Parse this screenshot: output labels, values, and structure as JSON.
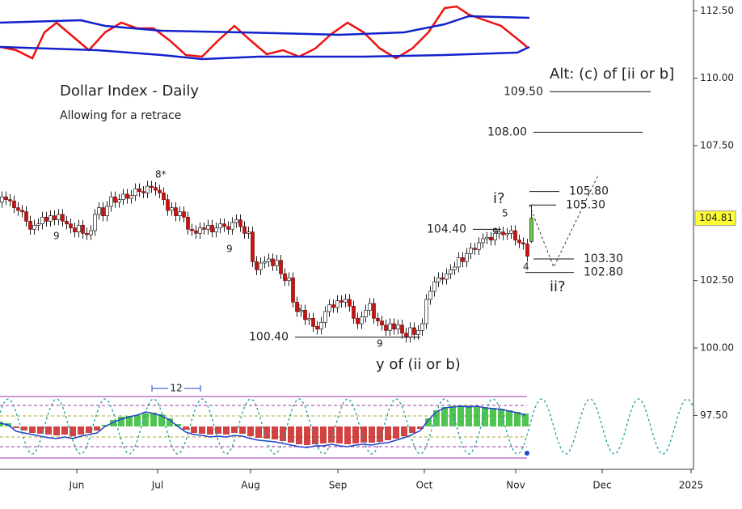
{
  "chart_data": {
    "type": "candlestick",
    "title": "Dollar Index - Daily",
    "subtitle": "Allowing for a retrace",
    "annotations": [
      "Alt: (c) of [ii or b]",
      "i?",
      "ii?",
      "y of (ii or b)"
    ],
    "open": [
      105.4,
      105.6,
      105.5,
      105.45,
      105.2,
      105.1,
      105.05,
      104.7,
      104.4,
      104.55,
      104.6,
      104.85,
      104.7,
      104.9,
      104.75,
      104.95,
      104.7,
      104.6,
      104.45,
      104.3,
      104.55,
      104.25,
      104.2,
      104.35,
      104.95,
      105.2,
      104.9,
      105.25,
      105.6,
      105.4,
      105.5,
      105.7,
      105.55,
      105.65,
      105.9,
      105.8,
      105.75,
      106.0,
      105.95,
      105.85,
      105.75,
      105.5,
      105.1,
      105.2,
      104.9,
      105.05,
      104.85,
      104.4,
      104.35,
      104.25,
      104.45,
      104.4,
      104.55,
      104.3,
      104.45,
      104.6,
      104.5,
      104.4,
      104.65,
      104.75,
      104.5,
      104.25,
      104.3,
      103.2,
      102.9,
      103.15,
      103.2,
      103.3,
      103.05,
      103.25,
      102.75,
      102.5,
      102.6,
      101.7,
      101.35,
      101.4,
      101.05,
      101.1,
      100.8,
      100.7,
      100.95,
      101.35,
      101.6,
      101.5,
      101.75,
      101.7,
      101.8,
      101.55,
      101.1,
      100.9,
      101.15,
      101.4,
      101.65,
      101.1,
      101.0,
      100.85,
      100.65,
      100.9,
      100.7,
      100.85,
      100.55,
      100.4,
      100.75,
      100.5,
      100.65,
      100.9,
      101.8,
      102.1,
      102.45,
      102.6,
      102.55,
      102.75,
      102.9,
      103.0,
      103.35,
      103.2,
      103.5,
      103.7,
      103.65,
      103.9,
      104.05,
      104.1,
      104.0,
      104.25,
      104.3,
      104.2,
      104.25,
      104.35,
      104.0,
      103.9,
      103.85,
      103.95
    ],
    "high": [
      105.8,
      105.8,
      105.7,
      105.65,
      105.4,
      105.3,
      105.25,
      104.9,
      104.75,
      104.8,
      105.05,
      105.05,
      105.1,
      105.1,
      105.15,
      105.15,
      104.9,
      104.8,
      104.65,
      104.75,
      104.75,
      104.45,
      104.55,
      105.15,
      105.4,
      105.4,
      105.45,
      105.8,
      105.8,
      105.7,
      105.9,
      105.9,
      105.85,
      106.1,
      106.1,
      106.0,
      106.2,
      106.2,
      106.15,
      106.05,
      105.95,
      105.7,
      105.4,
      105.4,
      105.25,
      105.25,
      105.05,
      104.6,
      104.55,
      104.65,
      104.65,
      104.75,
      104.75,
      104.65,
      104.8,
      104.8,
      104.7,
      104.85,
      104.95,
      104.95,
      104.7,
      104.5,
      104.5,
      103.4,
      103.35,
      103.4,
      103.5,
      103.5,
      103.45,
      103.45,
      102.95,
      102.8,
      102.8,
      101.9,
      101.6,
      101.6,
      101.3,
      101.3,
      101.0,
      101.15,
      101.55,
      101.8,
      101.8,
      101.95,
      101.95,
      102.0,
      102.0,
      101.75,
      101.3,
      101.35,
      101.6,
      101.85,
      101.85,
      101.3,
      101.2,
      101.05,
      101.1,
      101.1,
      101.05,
      101.05,
      100.75,
      100.95,
      100.95,
      100.85,
      101.1,
      102.0,
      102.3,
      102.65,
      102.8,
      102.8,
      102.95,
      103.1,
      103.2,
      103.55,
      103.55,
      103.7,
      103.9,
      103.9,
      104.1,
      104.25,
      104.3,
      104.3,
      104.45,
      104.5,
      104.5,
      104.45,
      104.55,
      104.55,
      104.2,
      104.1,
      104.05,
      105.3
    ],
    "low": [
      105.2,
      105.3,
      105.25,
      105.0,
      104.9,
      104.85,
      104.5,
      104.2,
      104.2,
      104.35,
      104.4,
      104.5,
      104.5,
      104.55,
      104.55,
      104.5,
      104.4,
      104.25,
      104.1,
      104.1,
      104.05,
      104.0,
      104.0,
      104.15,
      104.75,
      104.7,
      104.7,
      105.05,
      105.2,
      105.2,
      105.3,
      105.35,
      105.35,
      105.45,
      105.6,
      105.55,
      105.55,
      105.75,
      105.65,
      105.55,
      105.3,
      104.9,
      104.9,
      104.7,
      104.7,
      104.65,
      104.2,
      104.15,
      104.05,
      104.05,
      104.2,
      104.2,
      104.1,
      104.1,
      104.25,
      104.3,
      104.2,
      104.2,
      104.45,
      104.3,
      104.05,
      104.05,
      103.0,
      102.7,
      102.7,
      102.95,
      103.0,
      102.85,
      102.85,
      102.55,
      102.3,
      102.3,
      101.5,
      101.15,
      101.15,
      100.85,
      100.85,
      100.6,
      100.5,
      100.5,
      100.75,
      101.15,
      101.3,
      101.3,
      101.5,
      101.5,
      101.35,
      100.9,
      100.7,
      100.7,
      100.95,
      101.2,
      100.9,
      100.8,
      100.65,
      100.45,
      100.45,
      100.5,
      100.5,
      100.35,
      100.2,
      100.2,
      100.3,
      100.3,
      100.45,
      100.7,
      101.6,
      101.9,
      102.25,
      102.35,
      102.35,
      102.55,
      102.7,
      102.8,
      103.0,
      103.0,
      103.3,
      103.45,
      103.45,
      103.7,
      103.85,
      103.8,
      103.8,
      104.05,
      104.0,
      104.0,
      104.05,
      103.8,
      103.7,
      103.65,
      103.2,
      103.9
    ],
    "close": [
      105.6,
      105.5,
      105.45,
      105.2,
      105.1,
      105.05,
      104.7,
      104.4,
      104.55,
      104.6,
      104.85,
      104.7,
      104.9,
      104.75,
      104.95,
      104.7,
      104.6,
      104.45,
      104.3,
      104.55,
      104.25,
      104.2,
      104.35,
      104.95,
      105.2,
      104.9,
      105.25,
      105.6,
      105.4,
      105.5,
      105.7,
      105.55,
      105.65,
      105.9,
      105.8,
      105.75,
      106.0,
      105.95,
      105.85,
      105.75,
      105.5,
      105.1,
      105.2,
      104.9,
      105.05,
      104.85,
      104.4,
      104.35,
      104.25,
      104.45,
      104.4,
      104.55,
      104.3,
      104.45,
      104.6,
      104.5,
      104.4,
      104.65,
      104.75,
      104.5,
      104.25,
      104.3,
      103.2,
      102.9,
      103.15,
      103.2,
      103.3,
      103.05,
      103.25,
      102.75,
      102.5,
      102.6,
      101.7,
      101.35,
      101.4,
      101.05,
      101.1,
      100.8,
      100.7,
      100.95,
      101.35,
      101.6,
      101.5,
      101.75,
      101.7,
      101.8,
      101.55,
      101.1,
      100.9,
      101.15,
      101.4,
      101.65,
      101.1,
      101.0,
      100.85,
      100.65,
      100.9,
      100.7,
      100.85,
      100.55,
      100.4,
      100.75,
      100.5,
      100.65,
      100.9,
      101.8,
      102.1,
      102.45,
      102.6,
      102.55,
      102.75,
      102.9,
      103.0,
      103.35,
      103.2,
      103.5,
      103.7,
      103.65,
      103.9,
      104.05,
      104.1,
      104.0,
      104.25,
      104.3,
      104.2,
      104.25,
      104.35,
      104.0,
      103.9,
      103.85,
      103.4,
      104.81
    ],
    "up_color": "#ffffff",
    "down_color": "#cc1111",
    "last_color": "#66cc44",
    "ylim": [
      95.5,
      112.9
    ],
    "yticks": [
      {
        "value": 97.5,
        "label": "97.50"
      },
      {
        "value": 100,
        "label": "100.00"
      },
      {
        "value": 102.5,
        "label": "102.50"
      },
      {
        "value": 107.5,
        "label": "107.50"
      },
      {
        "value": 110,
        "label": "110.00"
      },
      {
        "value": 112.5,
        "label": "112.50"
      }
    ],
    "xlim": [
      0,
      172
    ],
    "xticks": [
      {
        "value": 19,
        "label": "Jun"
      },
      {
        "value": 39,
        "label": "Jul"
      },
      {
        "value": 62,
        "label": "Aug"
      },
      {
        "value": 83.6,
        "label": "Sep"
      },
      {
        "value": 105,
        "label": "Oct"
      },
      {
        "value": 127.6,
        "label": "Nov"
      },
      {
        "value": 149,
        "label": "Dec"
      },
      {
        "value": 171,
        "label": "2025"
      }
    ],
    "last_price": 104.81,
    "levels": [
      {
        "value": 109.5,
        "label": "109.50",
        "x": [
          136,
          161
        ],
        "label_side": "left"
      },
      {
        "value": 108,
        "label": "108.00",
        "x": [
          132,
          159
        ],
        "label_side": "left"
      },
      {
        "value": 105.8,
        "label": "105.80",
        "x": [
          131,
          138.4
        ],
        "label_side": "right"
      },
      {
        "value": 105.3,
        "label": "105.30",
        "x": [
          131,
          137.6
        ],
        "label_side": "right"
      },
      {
        "value": 104.4,
        "label": "104.40",
        "x": [
          117,
          124
        ],
        "label_side": "left"
      },
      {
        "value": 103.3,
        "label": "103.30",
        "x": [
          132,
          142
        ],
        "label_side": "right"
      },
      {
        "value": 102.8,
        "label": "102.80",
        "x": [
          130,
          142
        ],
        "label_side": "right"
      },
      {
        "value": 100.4,
        "label": "100.40",
        "x": [
          73,
          104
        ],
        "label_side": "left"
      }
    ],
    "projection": {
      "x": [
        131,
        137,
        148
      ],
      "y": [
        105.3,
        103.0,
        106.4
      ]
    },
    "counts": [
      {
        "text": "8*",
        "color": "#dd2222"
      },
      {
        "text": "9",
        "color": "#2233cc"
      },
      {
        "text": "9",
        "color": "#2233cc"
      },
      {
        "text": "9",
        "color": "#2233cc"
      },
      {
        "text": "5",
        "color": "#999922"
      },
      {
        "text": "5",
        "color": "#999922"
      },
      {
        "text": "9",
        "color": "#dd2222"
      },
      {
        "text": "4",
        "color": "#2233cc"
      }
    ],
    "oscillator": {
      "ylim": [
        0,
        80
      ],
      "series": [
        {
          "color": "#ee1111",
          "x": [
            0,
            4,
            8,
            11,
            14,
            18,
            22,
            26,
            30,
            34,
            38,
            42,
            46,
            50,
            54,
            58,
            62,
            66,
            70,
            74,
            78,
            82,
            86,
            90,
            94,
            98,
            102,
            106,
            110,
            113,
            116,
            120,
            124,
            128,
            130.4
          ],
          "values": [
            22,
            18,
            8,
            40,
            52,
            35,
            18,
            40,
            52,
            45,
            45,
            30,
            12,
            10,
            30,
            48,
            30,
            13,
            18,
            10,
            20,
            38,
            52,
            40,
            20,
            8,
            20,
            40,
            70,
            72,
            62,
            55,
            48,
            32,
            22
          ]
        },
        {
          "color": "#1122cc",
          "x": [
            0,
            20,
            26,
            40,
            60,
            84,
            100,
            110,
            116,
            131
          ],
          "values": [
            52,
            55,
            48,
            42,
            40,
            37,
            40,
            50,
            60,
            58
          ]
        },
        {
          "color": "#1122cc",
          "x": [
            0,
            24,
            40,
            50,
            64,
            90,
            110,
            128,
            131
          ],
          "values": [
            22,
            18,
            12,
            7,
            10,
            10,
            12,
            15,
            22
          ]
        }
      ]
    },
    "momentum": {
      "ylim": [
        -38,
        38
      ],
      "bar_up_color": "#33bb33",
      "bar_down_color": "#cc2222",
      "line_color": "#2244cc",
      "x": [
        0,
        2,
        4,
        6,
        8,
        10,
        12,
        14,
        16,
        18,
        20,
        22,
        24,
        26,
        28,
        30,
        32,
        34,
        36,
        38,
        40,
        42,
        44,
        46,
        48,
        50,
        52,
        54,
        56,
        58,
        60,
        62,
        64,
        66,
        68,
        70,
        72,
        74,
        76,
        78,
        80,
        82,
        84,
        86,
        88,
        90,
        92,
        94,
        96,
        98,
        100,
        102,
        104,
        106,
        108,
        110,
        112,
        114,
        116,
        118,
        120,
        122,
        124,
        126,
        128,
        130
      ],
      "bars": [
        6,
        4,
        -2,
        -5,
        -8,
        -9,
        -10,
        -11,
        -10,
        -12,
        -10,
        -8,
        -5,
        2,
        8,
        12,
        13,
        14,
        16,
        17,
        15,
        10,
        3,
        -4,
        -8,
        -9,
        -10,
        -9,
        -10,
        -8,
        -9,
        -12,
        -14,
        -15,
        -16,
        -18,
        -20,
        -22,
        -23,
        -22,
        -21,
        -20,
        -21,
        -22,
        -21,
        -20,
        -20,
        -19,
        -17,
        -15,
        -12,
        -8,
        -3,
        10,
        20,
        24,
        25,
        26,
        26,
        25,
        24,
        23,
        22,
        20,
        18,
        16
      ],
      "line": [
        4,
        2,
        -6,
        -8,
        -10,
        -12,
        -14,
        -15,
        -13,
        -15,
        -12,
        -10,
        -8,
        0,
        5,
        9,
        12,
        14,
        18,
        16,
        13,
        8,
        0,
        -7,
        -10,
        -11,
        -13,
        -12,
        -13,
        -11,
        -12,
        -15,
        -17,
        -18,
        -19,
        -21,
        -23,
        -25,
        -26,
        -24,
        -24,
        -22,
        -24,
        -25,
        -23,
        -22,
        -23,
        -21,
        -20,
        -17,
        -14,
        -10,
        -5,
        8,
        18,
        23,
        24,
        25,
        24,
        25,
        23,
        22,
        21,
        19,
        17,
        14
      ]
    },
    "cycle": {
      "period": 12,
      "peak": 134
    }
  }
}
